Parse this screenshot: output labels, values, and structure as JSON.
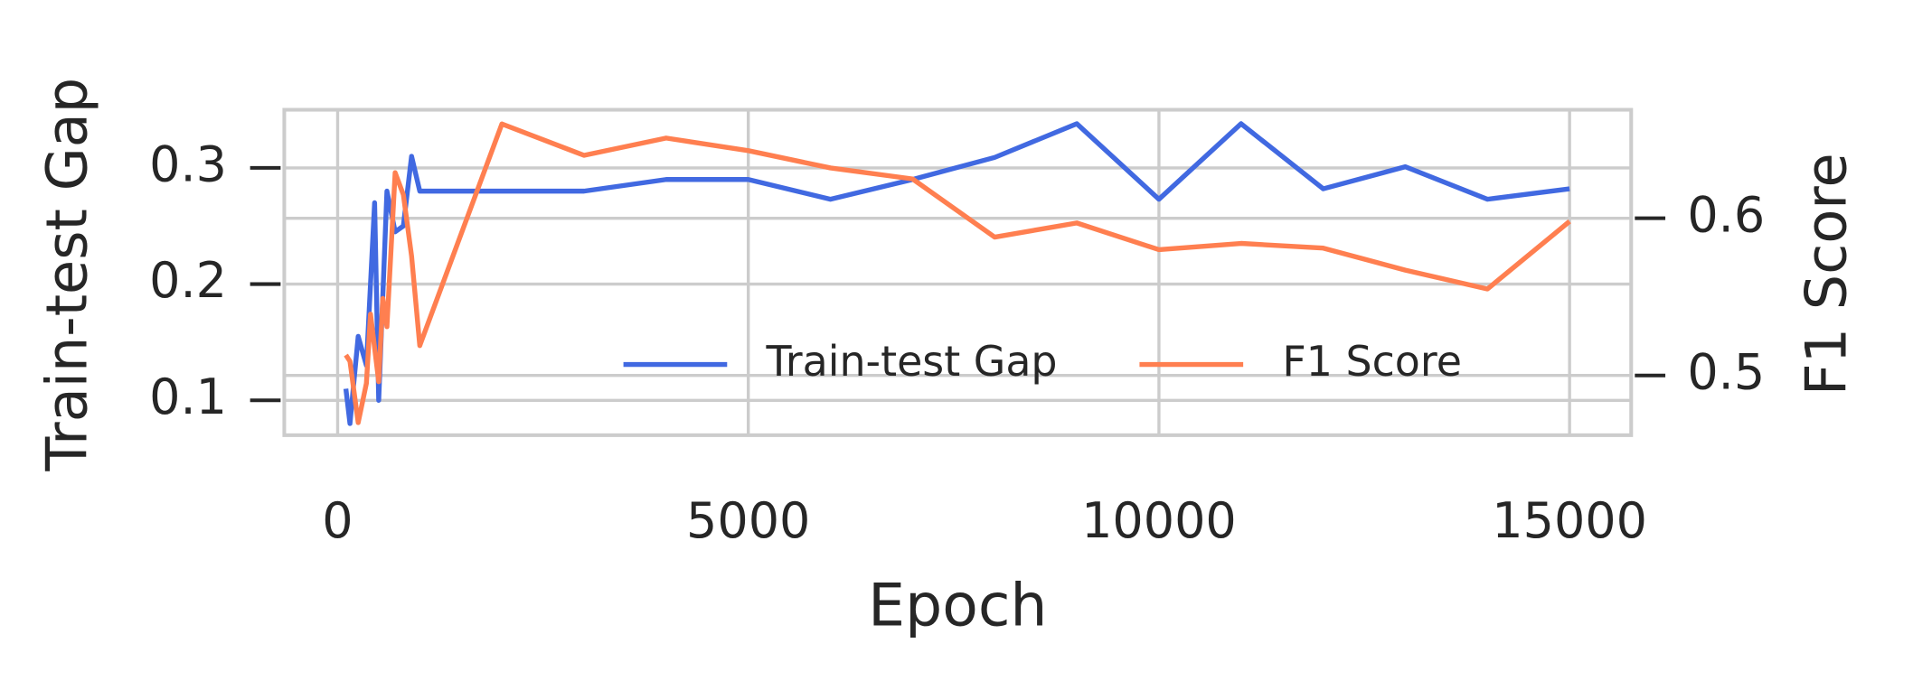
{
  "chart_data": {
    "type": "line",
    "xlabel": "Epoch",
    "ylabel": "Train-test Gap",
    "y2label": "F1 Score",
    "xlim": [
      -650,
      15750
    ],
    "xticks": [
      0,
      5000,
      10000,
      15000
    ],
    "ylim": [
      0.07,
      0.35
    ],
    "yticks": [
      0.1,
      0.2,
      0.3
    ],
    "y2lim": [
      0.462,
      0.669
    ],
    "y2ticks": [
      0.5,
      0.6
    ],
    "grid": true,
    "legend": "lower right",
    "series": [
      {
        "name": "Train-test Gap",
        "color": "#4169e1",
        "x": [
          100,
          150,
          250,
          350,
          450,
          500,
          600,
          700,
          800,
          900,
          1000,
          2000,
          3000,
          4000,
          5000,
          6000,
          7000,
          8000,
          9000,
          10000,
          11000,
          12000,
          13000,
          14000,
          15000
        ],
        "values": [
          0.11,
          0.08,
          0.155,
          0.13,
          0.27,
          0.1,
          0.28,
          0.245,
          0.25,
          0.31,
          0.28,
          0.28,
          0.28,
          0.29,
          0.29,
          0.273,
          0.29,
          0.309,
          0.338,
          0.273,
          0.338,
          0.282,
          0.301,
          0.273,
          0.282
        ]
      },
      {
        "name": "F1 Score",
        "color": "#ff7f50",
        "axis": "y2",
        "x": [
          100,
          150,
          250,
          350,
          400,
          500,
          550,
          600,
          700,
          800,
          900,
          1000,
          2000,
          3000,
          4000,
          5000,
          6000,
          7000,
          8000,
          9000,
          10000,
          11000,
          12000,
          13000,
          14000,
          15000
        ],
        "values": [
          0.513,
          0.509,
          0.47,
          0.495,
          0.539,
          0.496,
          0.549,
          0.531,
          0.629,
          0.615,
          0.576,
          0.519,
          0.66,
          0.64,
          0.651,
          0.643,
          0.632,
          0.625,
          0.588,
          0.597,
          0.58,
          0.584,
          0.581,
          0.567,
          0.555,
          0.598
        ]
      }
    ]
  }
}
